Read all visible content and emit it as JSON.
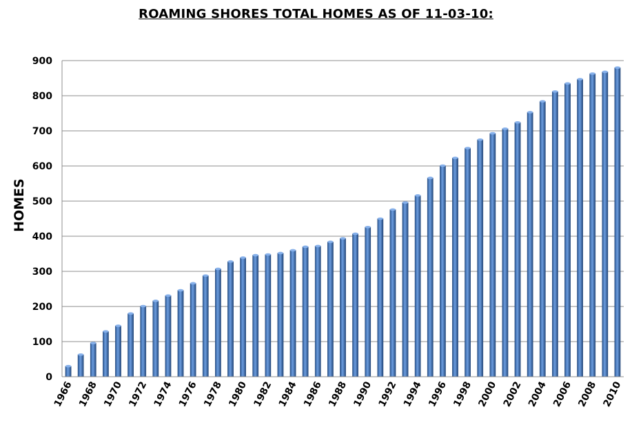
{
  "chart_data": {
    "type": "bar",
    "title": "ROAMING SHORES TOTAL HOMES AS OF 11-03-10:",
    "ylabel": "HOMES",
    "xlabel": "",
    "ylim": [
      0,
      900
    ],
    "yticks": [
      0,
      100,
      200,
      300,
      400,
      500,
      600,
      700,
      800,
      900
    ],
    "grid": true,
    "legend": "none",
    "bar_color": "#3a6fb5",
    "categories": [
      "1966",
      "1967",
      "1968",
      "1969",
      "1970",
      "1971",
      "1972",
      "1973",
      "1974",
      "1975",
      "1976",
      "1977",
      "1978",
      "1979",
      "1980",
      "1981",
      "1982",
      "1983",
      "1984",
      "1985",
      "1986",
      "1987",
      "1988",
      "1989",
      "1990",
      "1991",
      "1992",
      "1993",
      "1994",
      "1995",
      "1996",
      "1997",
      "1998",
      "1999",
      "2000",
      "2001",
      "2002",
      "2003",
      "2004",
      "2005",
      "2006",
      "2007",
      "2008",
      "2009",
      "2010"
    ],
    "tick_labels": [
      "1966",
      "1968",
      "1970",
      "1972",
      "1974",
      "1976",
      "1978",
      "1980",
      "1982",
      "1984",
      "1986",
      "1988",
      "1990",
      "1992",
      "1994",
      "1996",
      "1998",
      "2000",
      "2002",
      "2004",
      "2006",
      "2008",
      "2010"
    ],
    "values": [
      30,
      63,
      96,
      129,
      145,
      180,
      201,
      216,
      231,
      246,
      266,
      288,
      307,
      328,
      339,
      346,
      348,
      352,
      360,
      370,
      372,
      384,
      394,
      407,
      426,
      450,
      476,
      496,
      516,
      566,
      601,
      623,
      651,
      675,
      693,
      706,
      724,
      753,
      784,
      812,
      835,
      847,
      863,
      868,
      880
    ]
  }
}
